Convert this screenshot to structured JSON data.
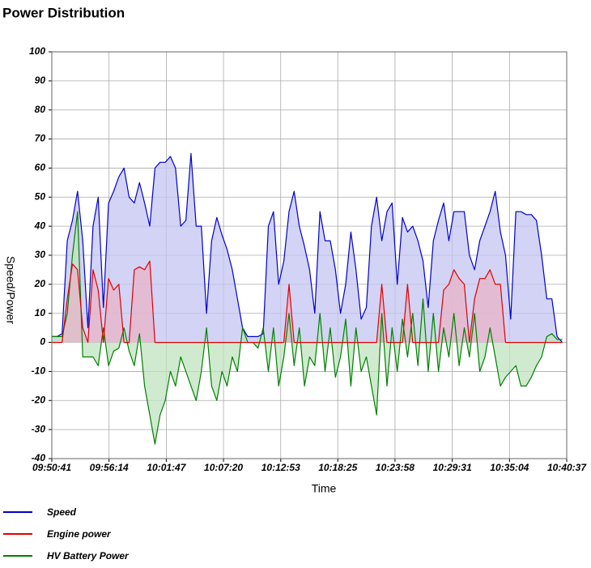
{
  "chart_data": {
    "type": "area",
    "title": "Power Distribution",
    "xlabel": "Time",
    "ylabel": "Speed/Power",
    "x": [
      "09:50:41",
      "09:51:11",
      "09:51:41",
      "09:52:11",
      "09:52:41",
      "09:53:11",
      "09:53:41",
      "09:54:11",
      "09:54:41",
      "09:55:11",
      "09:55:41",
      "09:56:11",
      "09:56:41",
      "09:57:11",
      "09:57:41",
      "09:58:11",
      "09:58:41",
      "09:59:11",
      "09:59:41",
      "10:00:11",
      "10:00:41",
      "10:01:11",
      "10:01:41",
      "10:02:11",
      "10:02:41",
      "10:03:11",
      "10:03:41",
      "10:04:11",
      "10:04:41",
      "10:05:11",
      "10:05:41",
      "10:06:11",
      "10:06:41",
      "10:07:11",
      "10:07:41",
      "10:08:11",
      "10:08:41",
      "10:09:11",
      "10:09:41",
      "10:10:11",
      "10:10:41",
      "10:11:11",
      "10:11:41",
      "10:12:11",
      "10:12:41",
      "10:13:11",
      "10:13:41",
      "10:14:11",
      "10:14:41",
      "10:15:11",
      "10:15:41",
      "10:16:11",
      "10:16:41",
      "10:17:11",
      "10:17:41",
      "10:18:11",
      "10:18:41",
      "10:19:11",
      "10:19:41",
      "10:20:11",
      "10:20:41",
      "10:21:11",
      "10:21:41",
      "10:22:11",
      "10:22:41",
      "10:23:11",
      "10:23:41",
      "10:24:11",
      "10:24:41",
      "10:25:11",
      "10:25:41",
      "10:26:11",
      "10:26:41",
      "10:27:11",
      "10:27:41",
      "10:28:11",
      "10:28:41",
      "10:29:11",
      "10:29:41",
      "10:30:11",
      "10:30:41",
      "10:31:11",
      "10:31:41",
      "10:32:11",
      "10:32:41",
      "10:33:11",
      "10:33:41",
      "10:34:11",
      "10:34:41",
      "10:35:11",
      "10:35:41",
      "10:36:11",
      "10:36:41",
      "10:37:11",
      "10:37:41",
      "10:38:11",
      "10:38:41",
      "10:39:11",
      "10:39:41",
      "10:40:11"
    ],
    "series": [
      {
        "name": "Speed",
        "color": "#0000cc",
        "fill": "#c4c4f2",
        "values": [
          2,
          2,
          3,
          35,
          42,
          52,
          35,
          5,
          40,
          50,
          12,
          48,
          52,
          57,
          60,
          50,
          48,
          55,
          48,
          40,
          60,
          62,
          62,
          64,
          60,
          40,
          42,
          65,
          40,
          40,
          10,
          35,
          43,
          37,
          32,
          25,
          15,
          5,
          2,
          2,
          2,
          3,
          40,
          45,
          20,
          28,
          45,
          52,
          40,
          33,
          25,
          10,
          45,
          35,
          35,
          25,
          10,
          20,
          38,
          25,
          8,
          12,
          40,
          50,
          35,
          45,
          48,
          20,
          43,
          38,
          40,
          35,
          28,
          12,
          35,
          42,
          48,
          35,
          45,
          45,
          45,
          30,
          25,
          35,
          40,
          45,
          52,
          38,
          30,
          8,
          45,
          45,
          44,
          44,
          42,
          30,
          15,
          15,
          2,
          0
        ]
      },
      {
        "name": "HV Battery Power",
        "color": "#008000",
        "fill": "#bfe3bf",
        "values": [
          2,
          2,
          2,
          10,
          30,
          45,
          -5,
          -5,
          -5,
          -8,
          5,
          -8,
          -3,
          -2,
          5,
          -3,
          -8,
          3,
          -15,
          -25,
          -35,
          -25,
          -20,
          -10,
          -15,
          -5,
          -10,
          -15,
          -20,
          -10,
          5,
          -15,
          -20,
          -10,
          -15,
          -5,
          -10,
          5,
          0,
          0,
          -2,
          5,
          -10,
          5,
          -15,
          -5,
          10,
          -8,
          5,
          -15,
          -5,
          -8,
          10,
          -10,
          5,
          -12,
          -5,
          8,
          -15,
          5,
          -10,
          -5,
          -15,
          -25,
          10,
          -15,
          5,
          -10,
          8,
          -5,
          10,
          -8,
          15,
          -10,
          10,
          -10,
          5,
          -5,
          10,
          -8,
          5,
          -5,
          10,
          -10,
          -5,
          5,
          -5,
          -15,
          -12,
          -10,
          -8,
          -15,
          -15,
          -12,
          -8,
          -5,
          2,
          3,
          1,
          1
        ]
      },
      {
        "name": "Engine power",
        "color": "#e00000",
        "fill": "#e8b4c8",
        "values": [
          0,
          0,
          0,
          15,
          27,
          25,
          5,
          0,
          25,
          18,
          0,
          22,
          18,
          20,
          0,
          0,
          25,
          26,
          25,
          28,
          0,
          0,
          0,
          0,
          0,
          0,
          0,
          0,
          0,
          0,
          0,
          0,
          0,
          0,
          0,
          0,
          0,
          0,
          0,
          0,
          0,
          0,
          0,
          0,
          0,
          0,
          20,
          0,
          0,
          0,
          0,
          0,
          0,
          0,
          0,
          0,
          0,
          0,
          0,
          0,
          0,
          0,
          0,
          0,
          20,
          0,
          0,
          0,
          0,
          20,
          0,
          0,
          0,
          0,
          0,
          0,
          18,
          20,
          25,
          22,
          20,
          0,
          15,
          22,
          22,
          25,
          20,
          20,
          0,
          0,
          0,
          0,
          0,
          0,
          0,
          0,
          0,
          0,
          0,
          0
        ]
      }
    ],
    "legend_order": [
      0,
      2,
      1
    ],
    "xlim": [
      "09:50:41",
      "10:40:37"
    ],
    "xticks": [
      "09:50:41",
      "09:56:14",
      "10:01:47",
      "10:07:20",
      "10:12:53",
      "10:18:25",
      "10:23:58",
      "10:29:31",
      "10:35:04",
      "10:40:37"
    ],
    "ylim": [
      -40,
      100
    ],
    "yticks": [
      -40,
      -30,
      -20,
      -10,
      0,
      10,
      20,
      30,
      40,
      50,
      60,
      70,
      80,
      90,
      100
    ],
    "grid": true
  }
}
